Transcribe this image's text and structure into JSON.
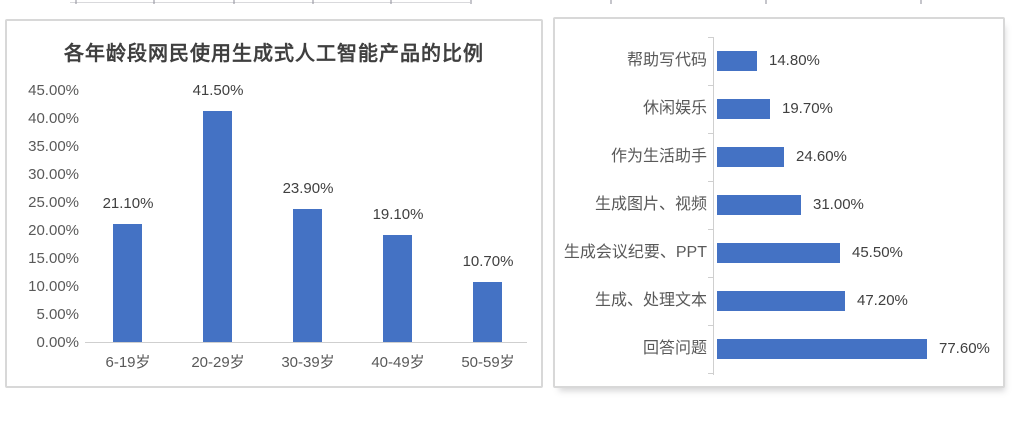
{
  "page": {
    "background": "#FFFFFF"
  },
  "colors": {
    "bar_blue": "#4472C4",
    "title_text": "#3F3F3F",
    "axis_text": "#595959",
    "value_text": "#404040",
    "axis_line": "#CFCFCF",
    "panel_border": "#D8D8D8"
  },
  "chart_data": [
    {
      "type": "bar",
      "title": "各年龄段网民使用生成式人工智能产品的比例",
      "categories": [
        "6-19岁",
        "20-29岁",
        "30-39岁",
        "40-49岁",
        "50-59岁"
      ],
      "values": [
        21.1,
        41.5,
        23.9,
        19.1,
        10.7
      ],
      "value_labels": [
        "21.10%",
        "41.50%",
        "23.90%",
        "19.10%",
        "10.70%"
      ],
      "y_ticks": [
        "45.00%",
        "40.00%",
        "35.00%",
        "30.00%",
        "25.00%",
        "20.00%",
        "15.00%",
        "10.00%",
        "5.00%",
        "0.00%"
      ],
      "ylim": [
        0,
        45
      ],
      "grid": false,
      "legend": "none",
      "xlabel": "",
      "ylabel": "",
      "bar_color": "#4472C4"
    },
    {
      "type": "bar-horizontal",
      "title": "",
      "categories": [
        "帮助写代码",
        "休闲娱乐",
        "作为生活助手",
        "生成图片、视频",
        "生成会议纪要、PPT",
        "生成、处理文本",
        "回答问题"
      ],
      "values": [
        14.8,
        19.7,
        24.6,
        31.0,
        45.5,
        47.2,
        77.6
      ],
      "value_labels": [
        "14.80%",
        "19.70%",
        "24.60%",
        "31.00%",
        "45.50%",
        "47.20%",
        "77.60%"
      ],
      "xlim": [
        0,
        80
      ],
      "grid": false,
      "legend": "none",
      "xlabel": "",
      "ylabel": "",
      "bar_color": "#4472C4"
    }
  ],
  "page_artifacts": {
    "top_edge_tick_positions": [
      75,
      153,
      233,
      312,
      390,
      470,
      610,
      765,
      920
    ],
    "top_hairline_span": [
      70,
      470
    ]
  }
}
